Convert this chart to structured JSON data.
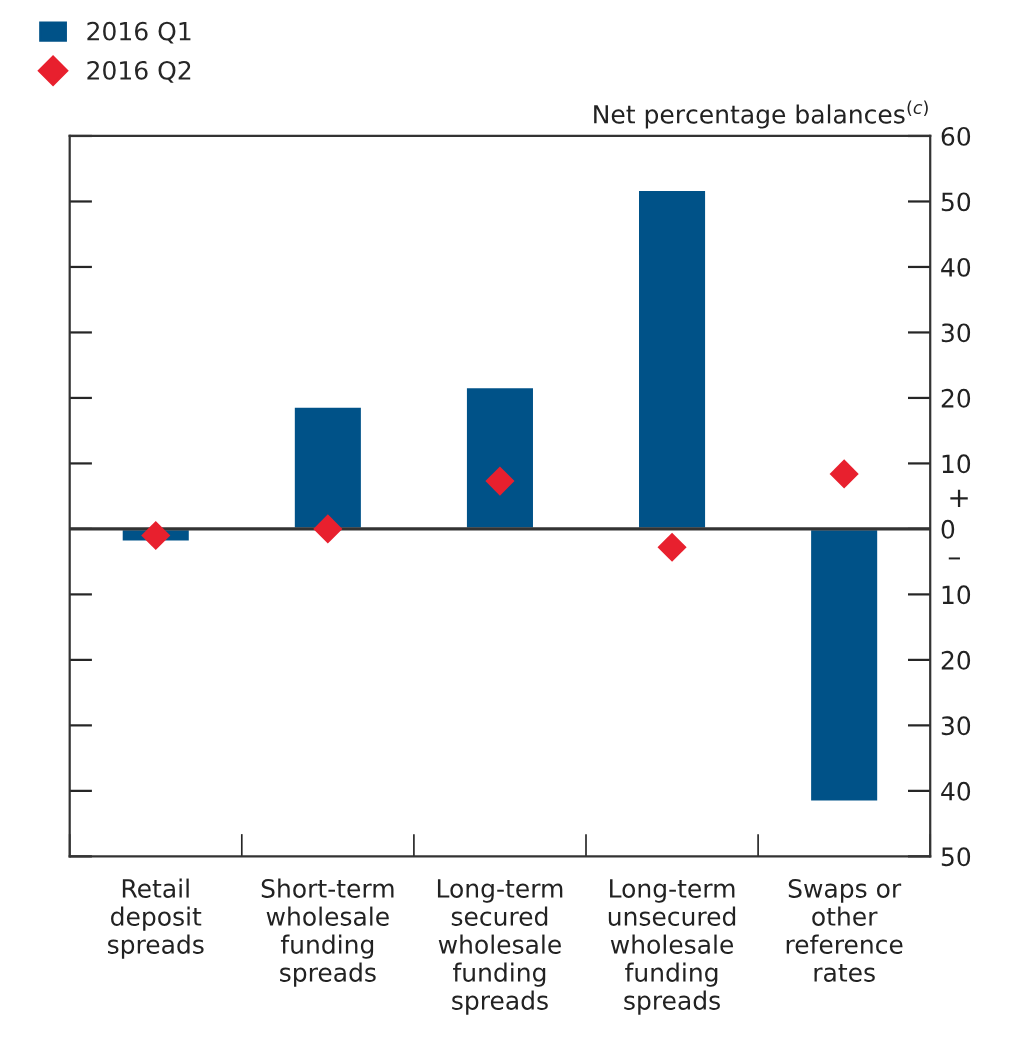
{
  "chart_data": {
    "type": "bar",
    "categories": [
      "Retail\ndeposit\nspreads",
      "Short-term\nwholesale\nfunding\nspreads",
      "Long-term\nsecured\nwholesale\nfunding\nspreads",
      "Long-term\nunsecured\nwholesale\nfunding\nspreads",
      "Swaps or\nother\nreference\nrates"
    ],
    "series": [
      {
        "name": "2016 Q1",
        "color": "#005288",
        "values": [
          -2,
          18.7,
          21.7,
          51.8,
          -41.7
        ]
      },
      {
        "name": "2016 Q2",
        "type": "scatter",
        "marker": "diamond",
        "color": "#e8202e",
        "values": [
          -1,
          0,
          7.3,
          -2.8,
          8.4
        ]
      }
    ],
    "ylabel": "Net percentage balances$^{(c)}$",
    "ylim": [
      -50,
      60
    ],
    "yticks": [
      {
        "value": -50,
        "label": "50"
      },
      {
        "value": -40,
        "label": "40"
      },
      {
        "value": -30,
        "label": "30"
      },
      {
        "value": -20,
        "label": "20"
      },
      {
        "value": -10,
        "label": "10"
      },
      0,
      10,
      20,
      30,
      40,
      50,
      60
    ],
    "annotations": [
      "+",
      "–"
    ],
    "ref_lines": [
      {
        "axis": "y",
        "value": 0,
        "color": "#333333"
      }
    ],
    "legend": "top left",
    "grid": false
  }
}
